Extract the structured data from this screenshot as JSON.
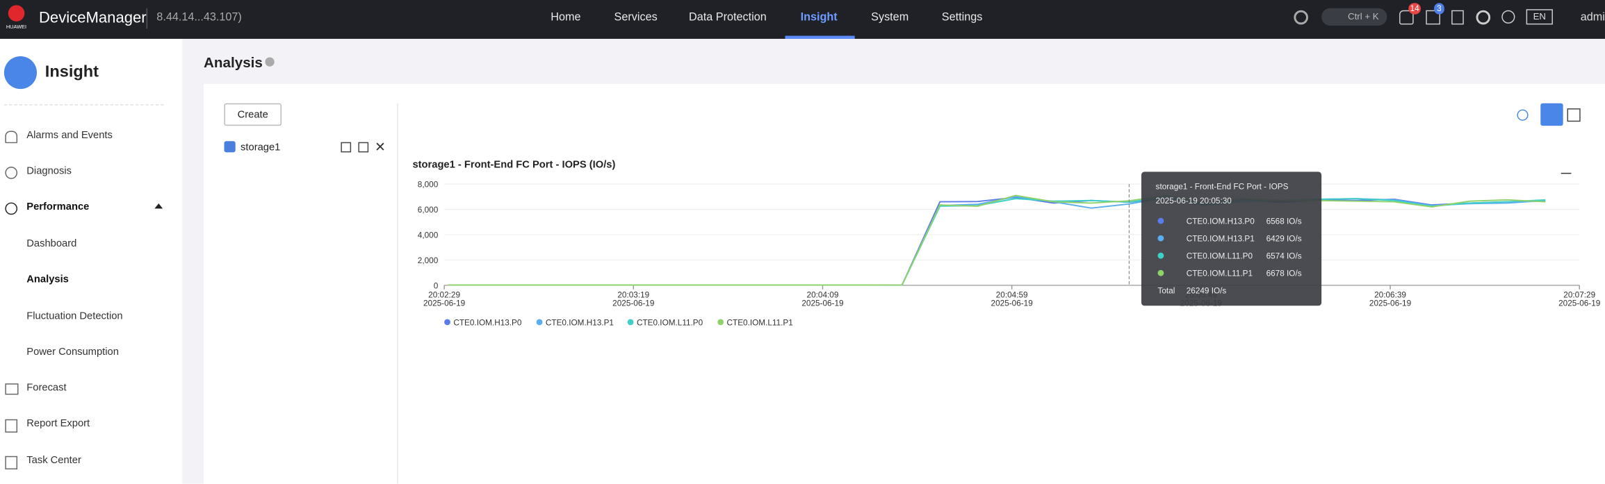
{
  "header": {
    "logo": "HUAWEI",
    "app": "DeviceManager",
    "ip": "8.44.14...43.107)",
    "nav": [
      "Home",
      "Services",
      "Data Protection",
      "Insight",
      "System",
      "Settings"
    ],
    "search": "Ctrl + K",
    "badges": [
      "14",
      "3"
    ],
    "lang": "EN",
    "user": "admi"
  },
  "sidebar": {
    "title": "Insight",
    "items": [
      "Alarms and Events",
      "Diagnosis",
      "Performance",
      "Dashboard",
      "Analysis",
      "Fluctuation Detection",
      "Power Consumption",
      "Forecast",
      "Report Export",
      "Task Center"
    ]
  },
  "page": {
    "title": "Analysis",
    "create": "Create",
    "item": "storage1"
  },
  "chart_data": {
    "type": "line",
    "title": "storage1 - Front-End FC Port - IOPS (IO/s)",
    "x": [
      "2025-06-19 20:02:30",
      "2025-06-19 20:02:40",
      "2025-06-19 20:02:50",
      "2025-06-19 20:03:00",
      "2025-06-19 20:03:10",
      "2025-06-19 20:03:20",
      "2025-06-19 20:03:30",
      "2025-06-19 20:03:40",
      "2025-06-19 20:03:50",
      "2025-06-19 20:04:00",
      "2025-06-19 20:04:10",
      "2025-06-19 20:04:20",
      "2025-06-19 20:04:30",
      "2025-06-19 20:04:40",
      "2025-06-19 20:04:50",
      "2025-06-19 20:05:00",
      "2025-06-19 20:05:10",
      "2025-06-19 20:05:20",
      "2025-06-19 20:05:30",
      "2025-06-19 20:05:40",
      "2025-06-19 20:05:50",
      "2025-06-19 20:06:00",
      "2025-06-19 20:06:10",
      "2025-06-19 20:06:20",
      "2025-06-19 20:06:30",
      "2025-06-19 20:06:40",
      "2025-06-19 20:06:50",
      "2025-06-19 20:07:00",
      "2025-06-19 20:07:10",
      "2025-06-19 20:07:20"
    ],
    "series": [
      {
        "name": "CTE0.IOM.H13.P0",
        "color": "#5b7bea",
        "values": [
          20,
          20,
          20,
          20,
          20,
          20,
          20,
          20,
          20,
          20,
          20,
          20,
          30,
          6600,
          6620,
          6950,
          6500,
          6700,
          6568,
          6900,
          6350,
          6800,
          6550,
          6750,
          6700,
          6800,
          6350,
          6500,
          6600,
          6650
        ]
      },
      {
        "name": "CTE0.IOM.H13.P1",
        "color": "#5aaef0",
        "values": [
          20,
          20,
          20,
          20,
          20,
          20,
          20,
          20,
          20,
          20,
          20,
          20,
          30,
          6300,
          6400,
          7000,
          6600,
          6100,
          6429,
          6950,
          6450,
          6700,
          6650,
          6800,
          6850,
          6750,
          6300,
          6450,
          6500,
          6700
        ]
      },
      {
        "name": "CTE0.IOM.L11.P0",
        "color": "#3fd0c8",
        "values": [
          20,
          20,
          20,
          20,
          20,
          20,
          20,
          20,
          20,
          20,
          20,
          20,
          30,
          6250,
          6300,
          6850,
          6650,
          6700,
          6574,
          7000,
          6300,
          6650,
          6700,
          6800,
          6850,
          6700,
          6250,
          6500,
          6600,
          6750
        ]
      },
      {
        "name": "CTE0.IOM.L11.P1",
        "color": "#8fd26a",
        "values": [
          20,
          20,
          20,
          20,
          20,
          20,
          20,
          20,
          20,
          20,
          20,
          20,
          30,
          6350,
          6250,
          7100,
          6600,
          6500,
          6678,
          7100,
          6500,
          6850,
          6700,
          6700,
          6650,
          6600,
          6200,
          6650,
          6750,
          6600
        ]
      }
    ],
    "xlim": [
      "2025-06-19 20:02:29",
      "2025-06-19 20:07:29"
    ],
    "xticks": [
      {
        "value": "2025-06-19 20:02:29",
        "label": [
          "20:02:29",
          "2025-06-19"
        ]
      },
      {
        "value": "2025-06-19 20:03:19",
        "label": [
          "20:03:19",
          "2025-06-19"
        ]
      },
      {
        "value": "2025-06-19 20:04:09",
        "label": [
          "20:04:09",
          "2025-06-19"
        ]
      },
      {
        "value": "2025-06-19 20:04:59",
        "label": [
          "20:04:59",
          "2025-06-19"
        ]
      },
      {
        "value": "2025-06-19 20:05:49",
        "label": [
          "20:05:49",
          "2025-06-19"
        ]
      },
      {
        "value": "2025-06-19 20:06:39",
        "label": [
          "20:06:39",
          "2025-06-19"
        ]
      },
      {
        "value": "2025-06-19 20:07:29",
        "label": [
          "20:07:29",
          "2025-06-19"
        ]
      }
    ],
    "ylim": [
      0,
      8000
    ],
    "yticks": [
      0,
      {
        "value": 2000,
        "label": "2,000"
      },
      {
        "value": 4000,
        "label": "4,000"
      },
      {
        "value": 6000,
        "label": "6,000"
      },
      {
        "value": 8000,
        "label": "8,000"
      }
    ],
    "tooltip": {
      "title": "storage1 - Front-End FC Port - IOPS",
      "time": "2025-06-19 20:05:30",
      "index": 18,
      "value_labels": [
        "6568 IO/s",
        "6429 IO/s",
        "6574 IO/s",
        "6678 IO/s"
      ],
      "total": "Total",
      "total_label": "26249 IO/s"
    }
  }
}
